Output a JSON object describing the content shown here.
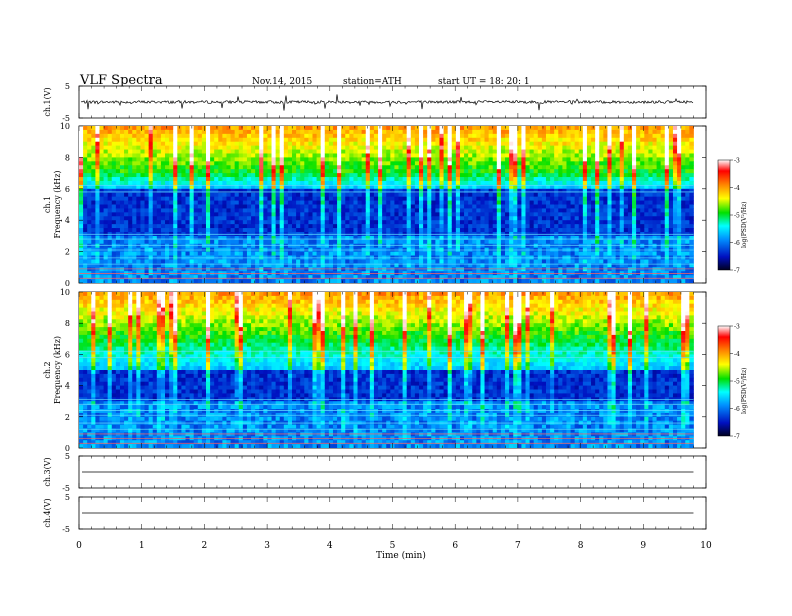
{
  "header": {
    "title": "VLF  Spectra",
    "date": "Nov.14, 2015",
    "station": "station=ATH",
    "start": "start  UT  =    18: 20: 1"
  },
  "chart_data": [
    {
      "type": "line",
      "panel": "ch1-waveform",
      "ylabel": "ch.1(V)",
      "ylim": [
        -5,
        5
      ],
      "yticks": [
        "5",
        "-5"
      ],
      "baseline_v": 0,
      "xlim": [
        0,
        10
      ]
    },
    {
      "type": "heatmap",
      "panel": "ch1-spectrogram",
      "ylabel_channel": "ch.1",
      "ylabel": "Frequency  (kHz)",
      "ylim": [
        0,
        10
      ],
      "yticks": [
        "0",
        "2",
        "4",
        "6",
        "8",
        "10"
      ],
      "xlim": [
        0,
        9.8
      ],
      "colorbar": {
        "label": "log(PSD(V²/Hz)",
        "range": [
          -7,
          -3
        ],
        "ticks": [
          "-3",
          "-4",
          "-5",
          "-6",
          "-7"
        ]
      },
      "quiet_band_khz": [
        3.0,
        6.0
      ]
    },
    {
      "type": "heatmap",
      "panel": "ch2-spectrogram",
      "ylabel_channel": "ch.2",
      "ylabel": "Frequency  (kHz)",
      "ylim": [
        0,
        10
      ],
      "yticks": [
        "0",
        "2",
        "4",
        "6",
        "8",
        "10"
      ],
      "xlim": [
        0,
        9.8
      ],
      "colorbar": {
        "label": "log(PSD(V²/Hz)",
        "range": [
          -7,
          -3
        ],
        "ticks": [
          "-3",
          "-4",
          "-5",
          "-6",
          "-7"
        ]
      },
      "quiet_band_khz": [
        3.0,
        5.0
      ]
    },
    {
      "type": "line",
      "panel": "ch3-waveform",
      "ylabel": "ch.3(V)",
      "ylim": [
        -5,
        5
      ],
      "yticks": [
        "5",
        "-5"
      ],
      "baseline_v": 0,
      "xlim": [
        0,
        10
      ]
    },
    {
      "type": "line",
      "panel": "ch4-waveform",
      "ylabel": "ch.4(V)",
      "ylim": [
        -5,
        5
      ],
      "yticks": [
        "5",
        "-5"
      ],
      "baseline_v": 0,
      "xlim": [
        0,
        10
      ]
    }
  ],
  "xaxis": {
    "label": "Time  (min)",
    "range": [
      0,
      10
    ],
    "ticks": [
      "0",
      "1",
      "2",
      "3",
      "4",
      "5",
      "6",
      "7",
      "8",
      "9",
      "10"
    ]
  }
}
